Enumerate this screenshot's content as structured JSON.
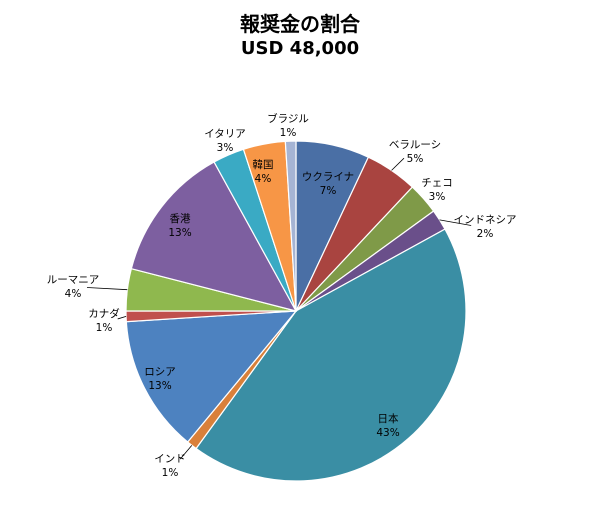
{
  "chart_data": {
    "type": "pie",
    "title": "報奨金の割合",
    "subtitle": "USD 48,000",
    "legend": "none",
    "slices": [
      {
        "label": "ウクライナ",
        "value": 7,
        "value_label": "7%",
        "color": "#4a6fa5"
      },
      {
        "label": "ベラルーシ",
        "value": 5,
        "value_label": "5%",
        "color": "#a94440"
      },
      {
        "label": "チェコ",
        "value": 3,
        "value_label": "3%",
        "color": "#7f9a48"
      },
      {
        "label": "インドネシア",
        "value": 2,
        "value_label": "2%",
        "color": "#6a4f8a"
      },
      {
        "label": "日本",
        "value": 43,
        "value_label": "43%",
        "color": "#3a8ea4"
      },
      {
        "label": "インド",
        "value": 1,
        "value_label": "1%",
        "color": "#d9803a"
      },
      {
        "label": "ロシア",
        "value": 13,
        "value_label": "13%",
        "color": "#4d82c0"
      },
      {
        "label": "カナダ",
        "value": 1,
        "value_label": "1%",
        "color": "#c0504d"
      },
      {
        "label": "ルーマニア",
        "value": 4,
        "value_label": "4%",
        "color": "#8fb84e"
      },
      {
        "label": "香港",
        "value": 13,
        "value_label": "13%",
        "color": "#7d5fa0"
      },
      {
        "label": "イタリア",
        "value": 3,
        "value_label": "3%",
        "color": "#3aaac4"
      },
      {
        "label": "韓国",
        "value": 4,
        "value_label": "4%",
        "color": "#f79646"
      },
      {
        "label": "ブラジル",
        "value": 1,
        "value_label": "1%",
        "color": "#a5b4d4"
      }
    ]
  }
}
